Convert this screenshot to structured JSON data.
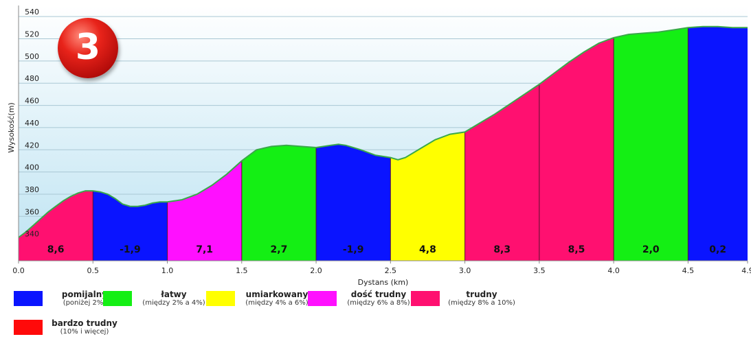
{
  "stage_badge": "3",
  "chart_data": {
    "type": "area",
    "xlabel": "Dystans (km)",
    "ylabel": "Wysokość(m)",
    "xlim": [
      0,
      4.9
    ],
    "ylim": [
      320,
      550
    ],
    "x_ticks": [
      "0.0",
      "0.5",
      "1.0",
      "1.5",
      "2.0",
      "2.5",
      "3.0",
      "3.5",
      "4.0",
      "4.5",
      "4.9"
    ],
    "y_ticks": [
      "340",
      "360",
      "380",
      "400",
      "420",
      "440",
      "460",
      "480",
      "500",
      "520",
      "540"
    ],
    "grid": true,
    "profile": {
      "x": [
        0.0,
        0.05,
        0.1,
        0.15,
        0.2,
        0.25,
        0.3,
        0.35,
        0.4,
        0.45,
        0.5,
        0.55,
        0.6,
        0.65,
        0.7,
        0.75,
        0.8,
        0.85,
        0.9,
        0.95,
        1.0,
        1.1,
        1.2,
        1.3,
        1.4,
        1.5,
        1.55,
        1.6,
        1.7,
        1.8,
        1.9,
        2.0,
        2.1,
        2.15,
        2.2,
        2.3,
        2.4,
        2.5,
        2.55,
        2.6,
        2.7,
        2.8,
        2.9,
        3.0,
        3.1,
        3.2,
        3.3,
        3.4,
        3.5,
        3.6,
        3.7,
        3.8,
        3.9,
        4.0,
        4.1,
        4.2,
        4.3,
        4.4,
        4.5,
        4.6,
        4.7,
        4.8,
        4.9
      ],
      "y": [
        341,
        346,
        352,
        358,
        364,
        369,
        374,
        378,
        381,
        383,
        383,
        382,
        380,
        376,
        371,
        369,
        369,
        370,
        372,
        373,
        373,
        375,
        380,
        388,
        398,
        410,
        415,
        420,
        423,
        424,
        423,
        422,
        424,
        425,
        424,
        420,
        415,
        413,
        411,
        413,
        421,
        429,
        434,
        436,
        444,
        452,
        461,
        470,
        479,
        489,
        499,
        508,
        516,
        521,
        524,
        525,
        526,
        528,
        530,
        531,
        531,
        530,
        530
      ]
    },
    "segments": [
      {
        "start": 0.0,
        "end": 0.5,
        "grade": "8,6",
        "category": "trudny"
      },
      {
        "start": 0.5,
        "end": 1.0,
        "grade": "-1,9",
        "category": "pomijalny"
      },
      {
        "start": 1.0,
        "end": 1.5,
        "grade": "7,1",
        "category": "dość trudny"
      },
      {
        "start": 1.5,
        "end": 2.0,
        "grade": "2,7",
        "category": "łatwy"
      },
      {
        "start": 2.0,
        "end": 2.5,
        "grade": "-1,9",
        "category": "pomijalny"
      },
      {
        "start": 2.5,
        "end": 3.0,
        "grade": "4,8",
        "category": "umiarkowany"
      },
      {
        "start": 3.0,
        "end": 3.5,
        "grade": "8,3",
        "category": "trudny"
      },
      {
        "start": 3.5,
        "end": 4.0,
        "grade": "8,5",
        "category": "trudny"
      },
      {
        "start": 4.0,
        "end": 4.5,
        "grade": "2,0",
        "category": "łatwy"
      },
      {
        "start": 4.5,
        "end": 4.9,
        "grade": "0,2",
        "category": "pomijalny"
      }
    ],
    "colors": {
      "pomijalny": "#0a14ff",
      "łatwy": "#14ef14",
      "umiarkowany": "#ffff00",
      "dość trudny": "#ff10ff",
      "trudny": "#ff1070",
      "bardzo trudny": "#ff0a0a",
      "sky_top": "#ffffff",
      "sky_bottom": "#bde3f2",
      "outline": "#3aa84a"
    }
  },
  "legend": [
    {
      "name": "pomijalny",
      "sub": "(poniżej 2%)",
      "color": "#0a14ff"
    },
    {
      "name": "łatwy",
      "sub": "(między 2% a 4%)",
      "color": "#14ef14"
    },
    {
      "name": "umiarkowany",
      "sub": "(między 4% a 6%)",
      "color": "#ffff00"
    },
    {
      "name": "dość trudny",
      "sub": "(między 6% a 8%)",
      "color": "#ff10ff"
    },
    {
      "name": "trudny",
      "sub": "(między 8% a 10%)",
      "color": "#ff1070"
    },
    {
      "name": "bardzo trudny",
      "sub": "(10% i więcej)",
      "color": "#ff0a0a"
    }
  ]
}
